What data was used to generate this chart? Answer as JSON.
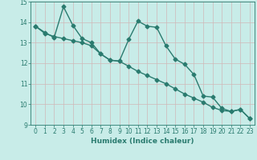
{
  "xlabel": "Humidex (Indice chaleur)",
  "x": [
    0,
    1,
    2,
    3,
    4,
    5,
    6,
    7,
    8,
    9,
    10,
    11,
    12,
    13,
    14,
    15,
    16,
    17,
    18,
    19,
    20,
    21,
    22,
    23
  ],
  "line_jagged": [
    13.8,
    13.5,
    13.25,
    14.75,
    13.85,
    13.2,
    13.0,
    12.45,
    12.15,
    12.1,
    13.15,
    14.05,
    13.8,
    13.75,
    12.85,
    12.2,
    11.95,
    11.45,
    10.4,
    10.35,
    9.8,
    9.65,
    9.75,
    9.3
  ],
  "line_straight": [
    13.8,
    13.45,
    13.3,
    13.2,
    13.1,
    13.0,
    12.85,
    12.45,
    12.15,
    12.1,
    11.85,
    11.6,
    11.4,
    11.2,
    11.0,
    10.75,
    10.5,
    10.3,
    10.1,
    9.85,
    9.7,
    9.65,
    9.75,
    9.3
  ],
  "line_color": "#2a7b6f",
  "bg_color": "#c8ece8",
  "grid_color_v": "#d0b8b8",
  "grid_color_h": "#d0b8b8",
  "plot_bg": "#c8ece8",
  "ylim": [
    9,
    15
  ],
  "xlim_min": -0.5,
  "xlim_max": 23.5,
  "yticks": [
    9,
    10,
    11,
    12,
    13,
    14,
    15
  ],
  "xticks": [
    0,
    1,
    2,
    3,
    4,
    5,
    6,
    7,
    8,
    9,
    10,
    11,
    12,
    13,
    14,
    15,
    16,
    17,
    18,
    19,
    20,
    21,
    22,
    23
  ],
  "marker": "D",
  "marker_size": 2.5,
  "line_width": 1.0,
  "tick_fontsize": 5.5,
  "xlabel_fontsize": 6.5
}
